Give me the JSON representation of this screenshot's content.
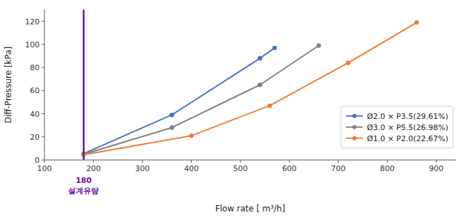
{
  "chart_data": {
    "type": "line",
    "title": "",
    "x_label": "Flow rate [ m³/h]",
    "y_label": "Diff-Pressure [kPa]",
    "xlim": [
      100,
      940
    ],
    "ylim": [
      0,
      130
    ],
    "xticks": [
      100,
      200,
      300,
      400,
      500,
      600,
      700,
      800,
      900
    ],
    "yticks": [
      0,
      20,
      40,
      60,
      80,
      100,
      120
    ],
    "grid": false,
    "legend": "lower right",
    "marker": "circle",
    "series": [
      {
        "name": "Ø2.0 × P3.5(29.61%)",
        "color": "#4472C4",
        "x": [
          180,
          360,
          540,
          570
        ],
        "values": [
          5.5,
          39,
          88,
          97
        ]
      },
      {
        "name": "Ø3.0 × P5.5(26.98%)",
        "color": "#808080",
        "x": [
          180,
          360,
          540,
          660
        ],
        "values": [
          5.0,
          28,
          65,
          99
        ]
      },
      {
        "name": "Ø1.0 × P2.0(22.67%)",
        "color": "#ED7D31",
        "x": [
          180,
          400,
          560,
          720,
          860
        ],
        "values": [
          4.5,
          21,
          47,
          84,
          119
        ]
      }
    ],
    "vlines": [
      {
        "x": 180,
        "color": "#6A0DAD"
      }
    ],
    "annotations": [
      {
        "text": "180",
        "x": 180,
        "color": "#6A0DAD"
      },
      {
        "text": "설계유량",
        "x": 180,
        "color": "#6A0DAD"
      }
    ]
  }
}
